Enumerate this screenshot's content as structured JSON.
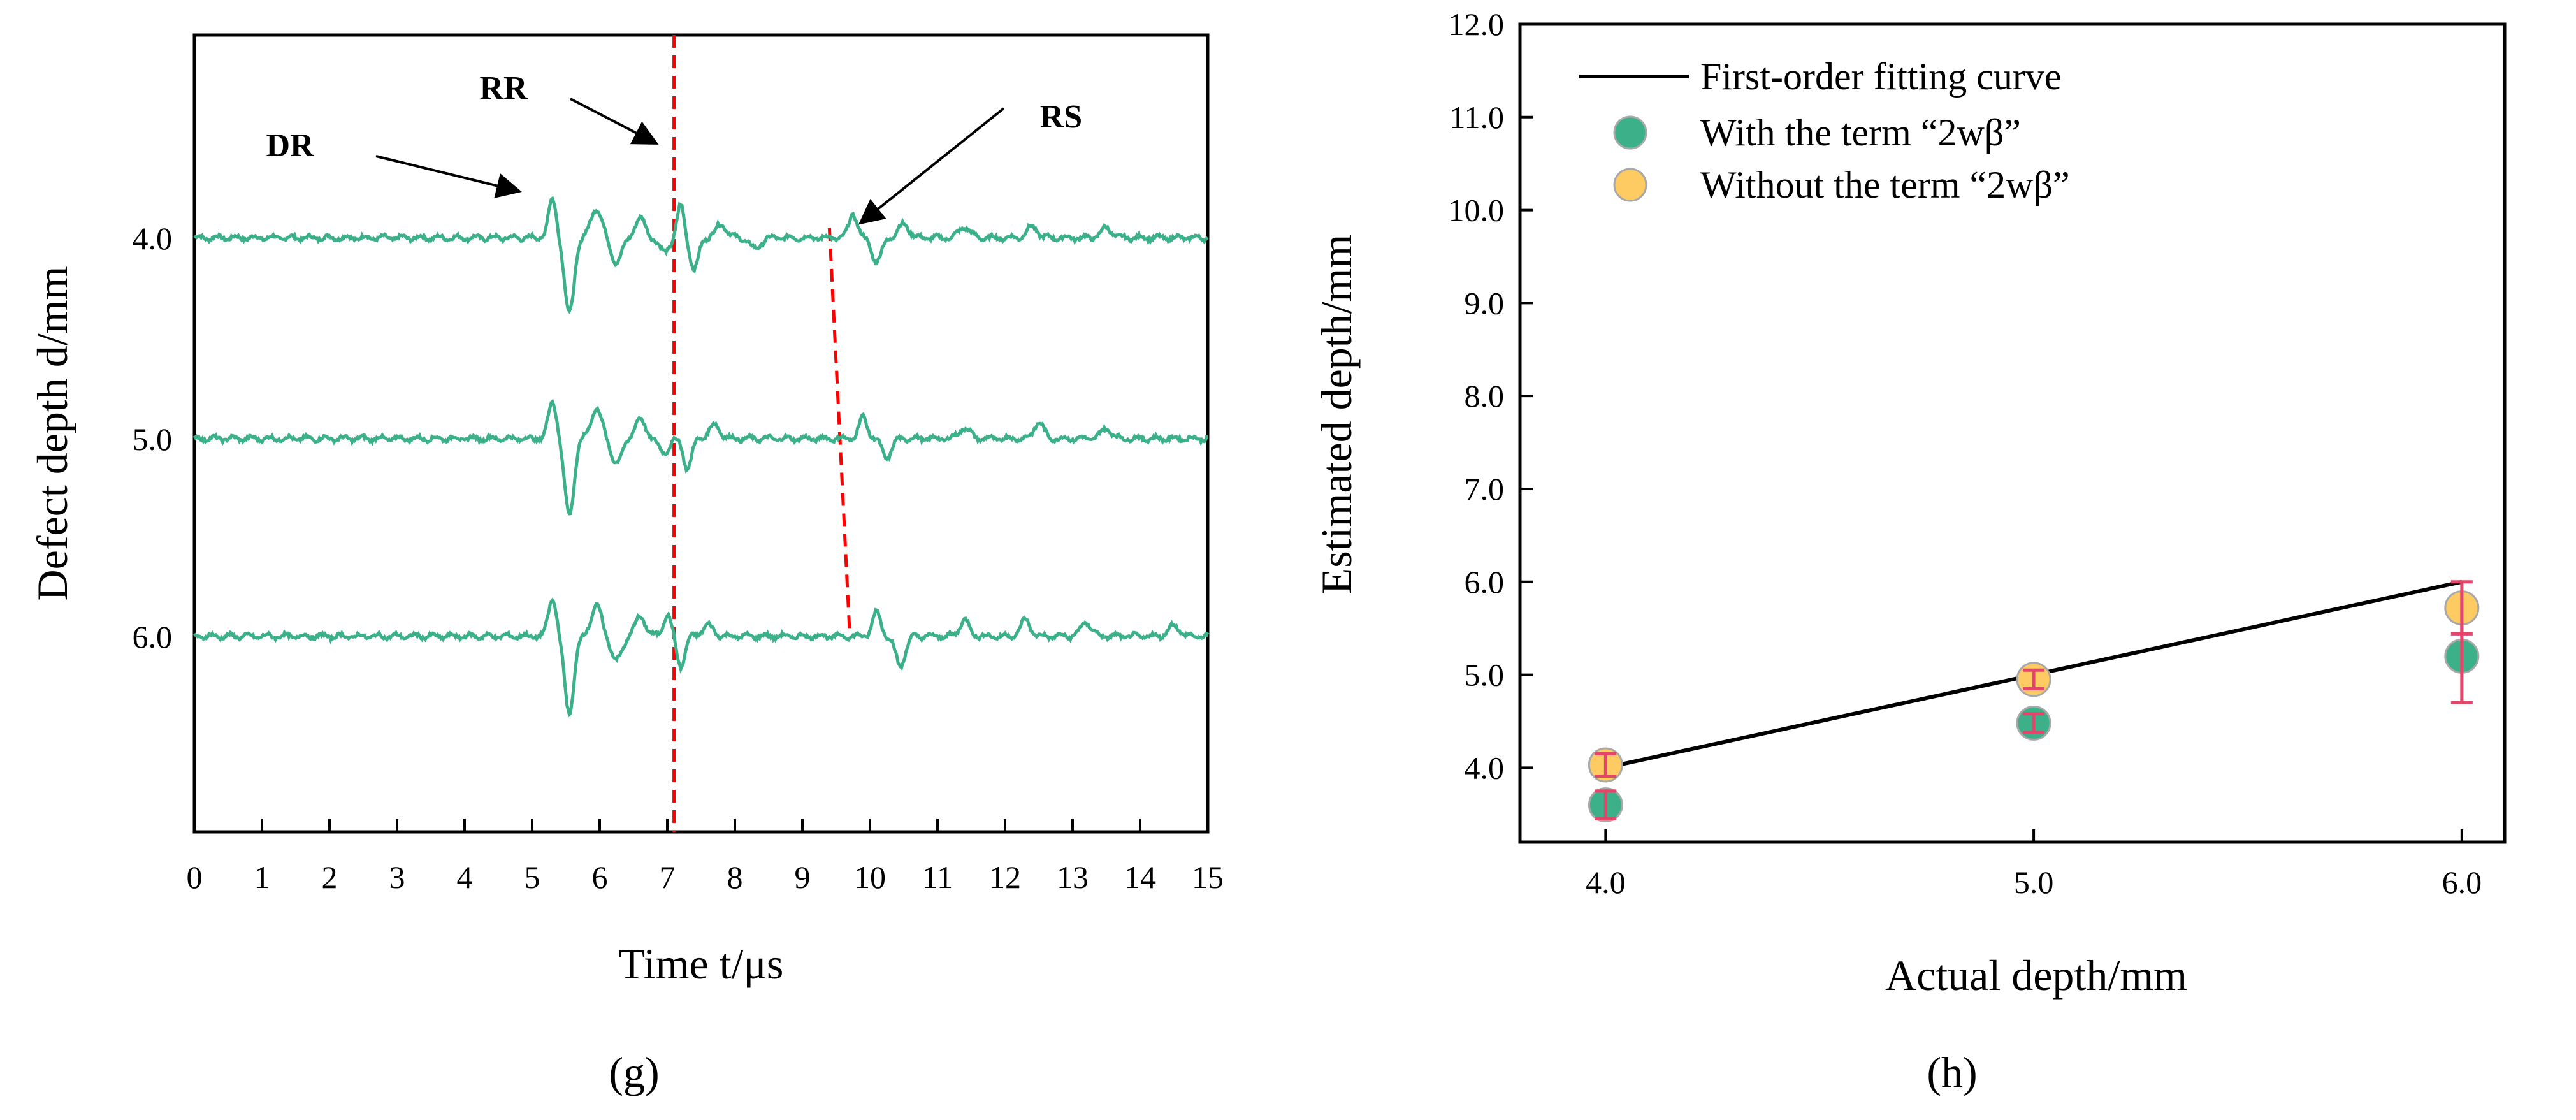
{
  "chart_data": [
    {
      "panel": "g",
      "type": "line",
      "title": "",
      "xlabel": "Time t/μs",
      "ylabel": "Defect depth d/mm",
      "xlim": [
        0,
        15
      ],
      "xticks": [
        0,
        1,
        2,
        3,
        4,
        5,
        6,
        7,
        8,
        9,
        10,
        11,
        12,
        13,
        14,
        15
      ],
      "offset_labels": [
        "4.0",
        "5.0",
        "6.0"
      ],
      "series": [
        {
          "depth": 4.0,
          "color": "#3cb089",
          "features": [
            {
              "t": 5.3,
              "a": 0.7,
              "sigma": 0.06
            },
            {
              "t": 5.55,
              "a": -1.4,
              "sigma": 0.07
            },
            {
              "t": 5.95,
              "a": 0.55,
              "sigma": 0.08
            },
            {
              "t": 6.25,
              "a": -0.45,
              "sigma": 0.08
            },
            {
              "t": 6.6,
              "a": 0.35,
              "sigma": 0.08
            },
            {
              "t": 6.95,
              "a": -0.25,
              "sigma": 0.08
            },
            {
              "t": 7.2,
              "a": 0.6,
              "sigma": 0.05
            },
            {
              "t": 7.4,
              "a": -0.6,
              "sigma": 0.06
            },
            {
              "t": 7.8,
              "a": 0.25,
              "sigma": 0.08
            },
            {
              "t": 8.3,
              "a": -0.2,
              "sigma": 0.08
            },
            {
              "t": 9.75,
              "a": 0.45,
              "sigma": 0.06
            },
            {
              "t": 10.1,
              "a": -0.45,
              "sigma": 0.07
            },
            {
              "t": 10.5,
              "a": 0.25,
              "sigma": 0.08
            },
            {
              "t": 11.4,
              "a": 0.2,
              "sigma": 0.08
            },
            {
              "t": 12.4,
              "a": 0.2,
              "sigma": 0.08
            },
            {
              "t": 13.5,
              "a": 0.18,
              "sigma": 0.08
            }
          ]
        },
        {
          "depth": 5.0,
          "color": "#3cb089",
          "features": [
            {
              "t": 5.3,
              "a": 0.7,
              "sigma": 0.06
            },
            {
              "t": 5.55,
              "a": -1.4,
              "sigma": 0.07
            },
            {
              "t": 5.95,
              "a": 0.55,
              "sigma": 0.08
            },
            {
              "t": 6.25,
              "a": -0.45,
              "sigma": 0.08
            },
            {
              "t": 6.6,
              "a": 0.35,
              "sigma": 0.08
            },
            {
              "t": 6.95,
              "a": -0.25,
              "sigma": 0.08
            },
            {
              "t": 7.3,
              "a": -0.55,
              "sigma": 0.06
            },
            {
              "t": 7.7,
              "a": 0.25,
              "sigma": 0.08
            },
            {
              "t": 9.9,
              "a": 0.4,
              "sigma": 0.06
            },
            {
              "t": 10.25,
              "a": -0.35,
              "sigma": 0.07
            },
            {
              "t": 11.4,
              "a": 0.2,
              "sigma": 0.08
            },
            {
              "t": 12.5,
              "a": 0.3,
              "sigma": 0.07
            },
            {
              "t": 13.5,
              "a": 0.18,
              "sigma": 0.08
            }
          ]
        },
        {
          "depth": 6.0,
          "color": "#3cb089",
          "features": [
            {
              "t": 5.3,
              "a": 0.7,
              "sigma": 0.06
            },
            {
              "t": 5.55,
              "a": -1.4,
              "sigma": 0.07
            },
            {
              "t": 5.95,
              "a": 0.55,
              "sigma": 0.08
            },
            {
              "t": 6.25,
              "a": -0.45,
              "sigma": 0.08
            },
            {
              "t": 6.6,
              "a": 0.35,
              "sigma": 0.08
            },
            {
              "t": 7.0,
              "a": 0.4,
              "sigma": 0.06
            },
            {
              "t": 7.2,
              "a": -0.55,
              "sigma": 0.06
            },
            {
              "t": 7.6,
              "a": 0.2,
              "sigma": 0.08
            },
            {
              "t": 10.1,
              "a": 0.45,
              "sigma": 0.06
            },
            {
              "t": 10.45,
              "a": -0.55,
              "sigma": 0.07
            },
            {
              "t": 11.4,
              "a": 0.3,
              "sigma": 0.07
            },
            {
              "t": 12.3,
              "a": 0.3,
              "sigma": 0.07
            },
            {
              "t": 13.2,
              "a": 0.25,
              "sigma": 0.08
            },
            {
              "t": 14.5,
              "a": 0.2,
              "sigma": 0.08
            }
          ]
        }
      ],
      "reference_lines": [
        {
          "label": "RR",
          "style": "dashed",
          "color": "#ff0000",
          "t_top": 7.1,
          "t_bottom": 7.1,
          "spans": "full"
        },
        {
          "label": "RS",
          "style": "dashed",
          "color": "#ff0000",
          "t_top": 9.4,
          "t_bottom": 9.7,
          "spans": "4.0-6.0"
        }
      ],
      "annotations": [
        {
          "text": "DR",
          "arrow_to_t": 4.9,
          "arrow_to_trace": 4.0
        },
        {
          "text": "RR",
          "arrow_to_t": 6.9,
          "arrow_to_trace": 4.0
        },
        {
          "text": "RS",
          "arrow_to_t": 9.9,
          "arrow_to_trace": 4.0
        }
      ]
    },
    {
      "panel": "h",
      "type": "scatter",
      "title": "",
      "xlabel": "Actual depth/mm",
      "ylabel": "Estimated depth/mm",
      "xlim": [
        3.8,
        6.1
      ],
      "ylim": [
        3.2,
        12.0
      ],
      "xticks": [
        "4.0",
        "5.0",
        "6.0"
      ],
      "yticks": [
        "4.0",
        "5.0",
        "6.0",
        "7.0",
        "8.0",
        "9.0",
        "10.0",
        "11.0",
        "12.0"
      ],
      "fit_line": {
        "name": "First-order fitting curve",
        "x": [
          4.0,
          6.0
        ],
        "y": [
          4.0,
          6.0
        ],
        "color": "#000000"
      },
      "series": [
        {
          "name": "With the term “2wβ”",
          "color": "#3cb089",
          "x": [
            4.0,
            5.0,
            6.0
          ],
          "y": [
            3.6,
            4.48,
            5.2
          ],
          "err": [
            0.15,
            0.1,
            0.5
          ]
        },
        {
          "name": "Without the term “2wβ”",
          "color": "#fdcb62",
          "x": [
            4.0,
            5.0,
            6.0
          ],
          "y": [
            4.03,
            4.95,
            5.72
          ],
          "err": [
            0.12,
            0.1,
            0.28
          ]
        }
      ],
      "errorbar_color": "#e3456b",
      "legend_position": "top-left"
    }
  ],
  "panel_labels": {
    "g": "(g)",
    "h": "(h)"
  }
}
